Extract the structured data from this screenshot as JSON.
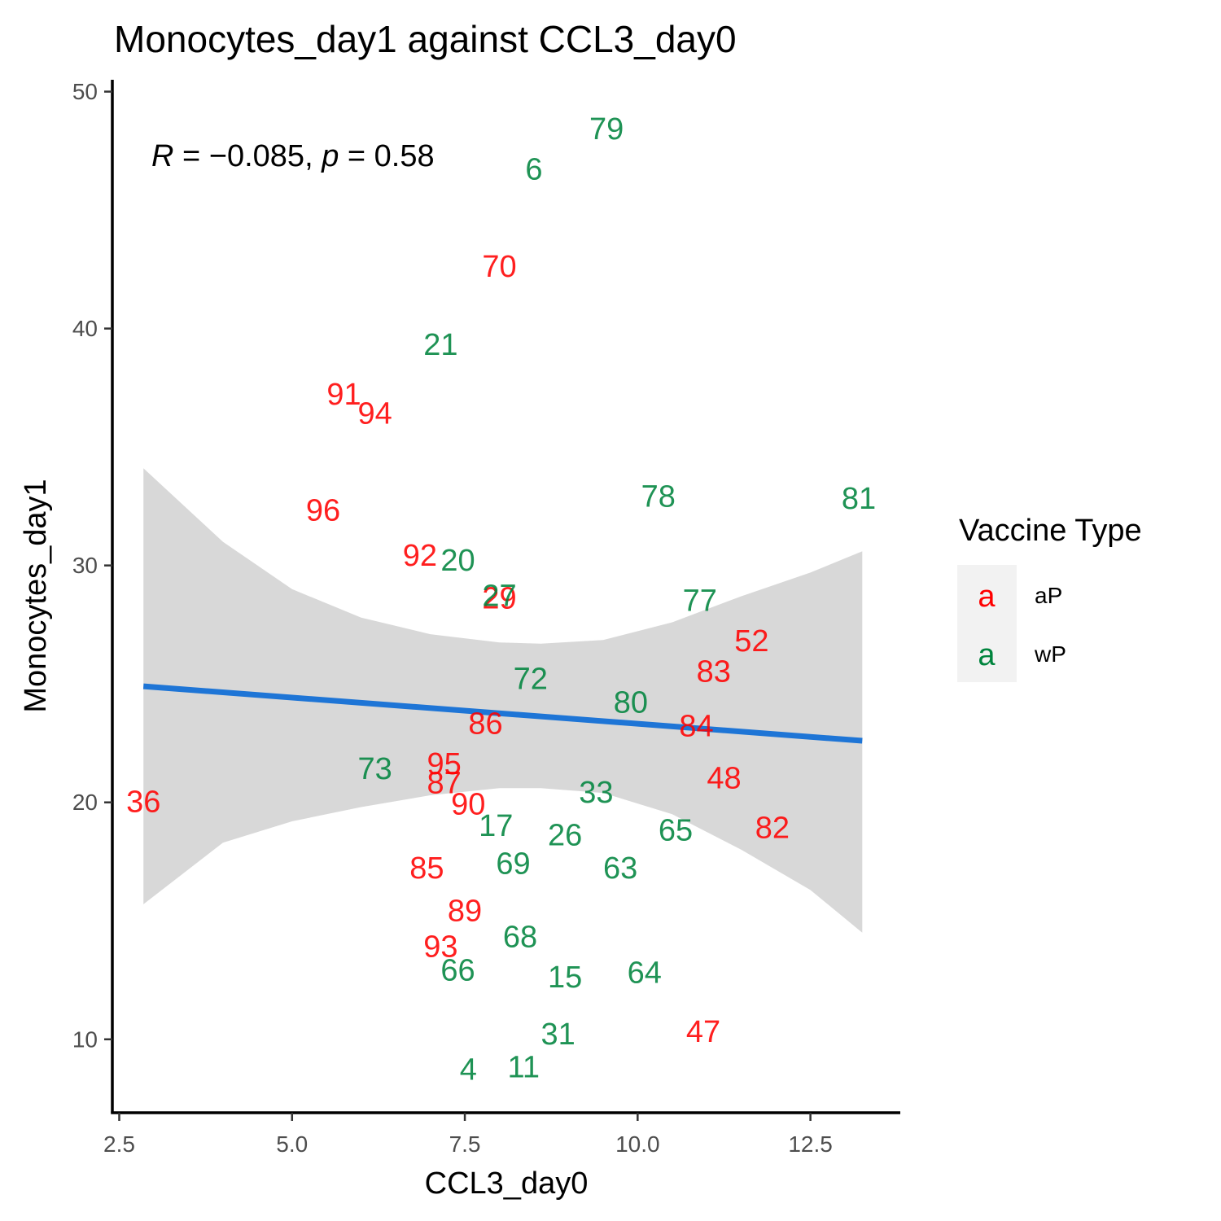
{
  "chart_data": {
    "type": "scatter",
    "title": "Monocytes_day1 against CCL3_day0",
    "xlabel": "CCL3_day0",
    "ylabel": "Monocytes_day1",
    "xlim": [
      2.4,
      13.8
    ],
    "ylim": [
      6.9,
      50.5
    ],
    "x_ticks": [
      2.5,
      5.0,
      7.5,
      10.0,
      12.5
    ],
    "x_tick_labels": [
      "2.5",
      "5.0",
      "7.5",
      "10.0",
      "12.5"
    ],
    "y_ticks": [
      10,
      20,
      30,
      40,
      50
    ],
    "y_tick_labels": [
      "10",
      "20",
      "30",
      "40",
      "50"
    ],
    "annotation": {
      "R": "−0.085",
      "p": "0.58"
    },
    "grid": false,
    "legend": {
      "title": "Vaccine Type",
      "position": "right",
      "key_glyph": "a",
      "entries": [
        {
          "name": "aP",
          "color": "#ff0000"
        },
        {
          "name": "wP",
          "color": "#00843d"
        }
      ]
    },
    "series": [
      {
        "name": "aP",
        "color": "#ff0000",
        "points": [
          {
            "label": "70",
            "x": 8.0,
            "y": 42.6
          },
          {
            "label": "91",
            "x": 5.75,
            "y": 37.2
          },
          {
            "label": "94",
            "x": 6.2,
            "y": 36.4
          },
          {
            "label": "96",
            "x": 5.45,
            "y": 32.3
          },
          {
            "label": "92",
            "x": 6.85,
            "y": 30.4
          },
          {
            "label": "29",
            "x": 8.0,
            "y": 28.6
          },
          {
            "label": "52",
            "x": 11.65,
            "y": 26.8
          },
          {
            "label": "83",
            "x": 11.1,
            "y": 25.5
          },
          {
            "label": "86",
            "x": 7.8,
            "y": 23.3
          },
          {
            "label": "84",
            "x": 10.85,
            "y": 23.2
          },
          {
            "label": "95",
            "x": 7.2,
            "y": 21.6
          },
          {
            "label": "87",
            "x": 7.2,
            "y": 20.8
          },
          {
            "label": "48",
            "x": 11.25,
            "y": 21.0
          },
          {
            "label": "36",
            "x": 2.85,
            "y": 20.0
          },
          {
            "label": "90",
            "x": 7.55,
            "y": 19.9
          },
          {
            "label": "82",
            "x": 11.95,
            "y": 18.9
          },
          {
            "label": "85",
            "x": 6.95,
            "y": 17.2
          },
          {
            "label": "89",
            "x": 7.5,
            "y": 15.4
          },
          {
            "label": "93",
            "x": 7.15,
            "y": 13.9
          },
          {
            "label": "47",
            "x": 10.95,
            "y": 10.3
          }
        ]
      },
      {
        "name": "wP",
        "color": "#00843d",
        "points": [
          {
            "label": "79",
            "x": 9.55,
            "y": 48.4
          },
          {
            "label": "6",
            "x": 8.5,
            "y": 46.7
          },
          {
            "label": "21",
            "x": 7.15,
            "y": 39.3
          },
          {
            "label": "78",
            "x": 10.3,
            "y": 32.9
          },
          {
            "label": "81",
            "x": 13.2,
            "y": 32.8
          },
          {
            "label": "20",
            "x": 7.4,
            "y": 30.2
          },
          {
            "label": "27",
            "x": 8.0,
            "y": 28.7
          },
          {
            "label": "77",
            "x": 10.9,
            "y": 28.5
          },
          {
            "label": "72",
            "x": 8.45,
            "y": 25.2
          },
          {
            "label": "80",
            "x": 9.9,
            "y": 24.2
          },
          {
            "label": "73",
            "x": 6.2,
            "y": 21.4
          },
          {
            "label": "33",
            "x": 9.4,
            "y": 20.4
          },
          {
            "label": "17",
            "x": 7.95,
            "y": 19.0
          },
          {
            "label": "26",
            "x": 8.95,
            "y": 18.6
          },
          {
            "label": "65",
            "x": 10.55,
            "y": 18.8
          },
          {
            "label": "69",
            "x": 8.2,
            "y": 17.4
          },
          {
            "label": "63",
            "x": 9.75,
            "y": 17.2
          },
          {
            "label": "68",
            "x": 8.3,
            "y": 14.3
          },
          {
            "label": "66",
            "x": 7.4,
            "y": 12.9
          },
          {
            "label": "15",
            "x": 8.95,
            "y": 12.6
          },
          {
            "label": "64",
            "x": 10.1,
            "y": 12.8
          },
          {
            "label": "31",
            "x": 8.85,
            "y": 10.2
          },
          {
            "label": "4",
            "x": 7.55,
            "y": 8.7
          },
          {
            "label": "11",
            "x": 8.35,
            "y": 8.8
          }
        ]
      }
    ],
    "fit": {
      "method": "linear",
      "color": "#1e75d6",
      "band_color": "#d8d8d8",
      "points": [
        {
          "x": 2.85,
          "y": 24.9,
          "lower": 15.7,
          "upper": 34.1
        },
        {
          "x": 4.0,
          "y": 24.62,
          "lower": 18.3,
          "upper": 31.0
        },
        {
          "x": 5.0,
          "y": 24.4,
          "lower": 19.2,
          "upper": 29.0
        },
        {
          "x": 6.0,
          "y": 24.2,
          "lower": 19.8,
          "upper": 27.8
        },
        {
          "x": 7.0,
          "y": 23.95,
          "lower": 20.3,
          "upper": 27.1
        },
        {
          "x": 8.0,
          "y": 23.72,
          "lower": 20.6,
          "upper": 26.75
        },
        {
          "x": 8.6,
          "y": 23.6,
          "lower": 20.6,
          "upper": 26.7
        },
        {
          "x": 9.5,
          "y": 23.4,
          "lower": 20.4,
          "upper": 26.85
        },
        {
          "x": 10.5,
          "y": 23.18,
          "lower": 19.5,
          "upper": 27.6
        },
        {
          "x": 11.5,
          "y": 22.95,
          "lower": 18.0,
          "upper": 28.7
        },
        {
          "x": 12.5,
          "y": 22.75,
          "lower": 16.3,
          "upper": 29.7
        },
        {
          "x": 13.25,
          "y": 22.6,
          "lower": 14.5,
          "upper": 30.6
        }
      ]
    }
  }
}
